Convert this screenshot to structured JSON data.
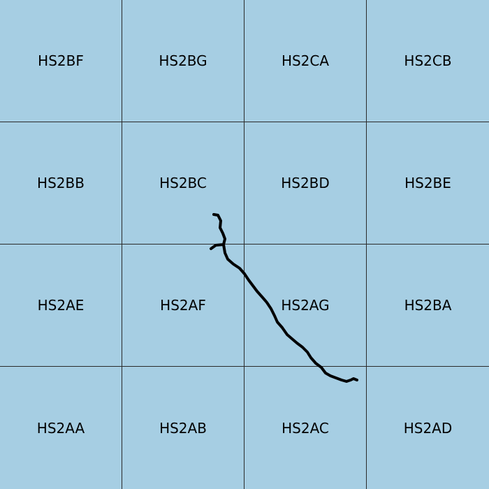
{
  "map": {
    "grid_cells": [
      [
        "HS2BF",
        "HS2BG",
        "HS2CA",
        "HS2CB"
      ],
      [
        "HS2BB",
        "HS2BC",
        "HS2BD",
        "HS2BE"
      ],
      [
        "HS2AE",
        "HS2AF",
        "HS2AG",
        "HS2BA"
      ],
      [
        "HS2AA",
        "HS2AB",
        "HS2AC",
        "HS2AD"
      ]
    ],
    "colors": {
      "cell_fill": "#a6cee3",
      "grid_line": "#2b2b2b",
      "track": "#000000",
      "label": "#000000"
    }
  }
}
